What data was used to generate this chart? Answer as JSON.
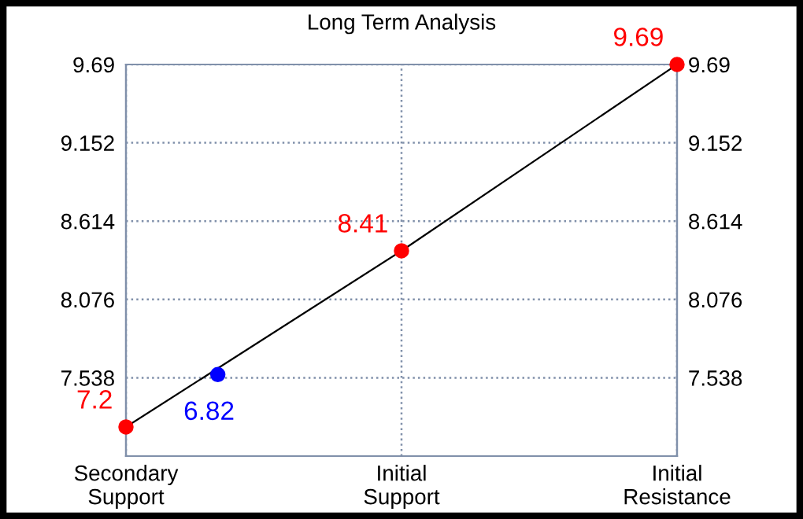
{
  "chart_data": {
    "type": "line",
    "title": "Long Term Analysis",
    "categories": [
      "Secondary\nSupport",
      null,
      null,
      "Initial\nSupport",
      null,
      null,
      "Initial\nResistance"
    ],
    "series": [
      {
        "color": "#ff0000",
        "values": [
          7.2,
          null,
          null,
          8.41,
          null,
          null,
          9.69
        ],
        "data_labels": true
      },
      {
        "type": "scatter",
        "color": "#0000ff",
        "values": [
          null,
          7.56,
          null,
          null,
          null,
          null,
          null
        ]
      }
    ],
    "annotations": [
      "6.82"
    ],
    "ylim": [
      7.0,
      9.69
    ],
    "yticks": [
      7.538,
      8.076,
      8.614,
      9.152,
      9.69
    ],
    "y2lim": [
      7.0,
      9.69
    ],
    "y2ticks": [
      7.538,
      8.076,
      8.614,
      9.152,
      9.69
    ],
    "grid": true,
    "marker": "circle",
    "legend": false
  }
}
